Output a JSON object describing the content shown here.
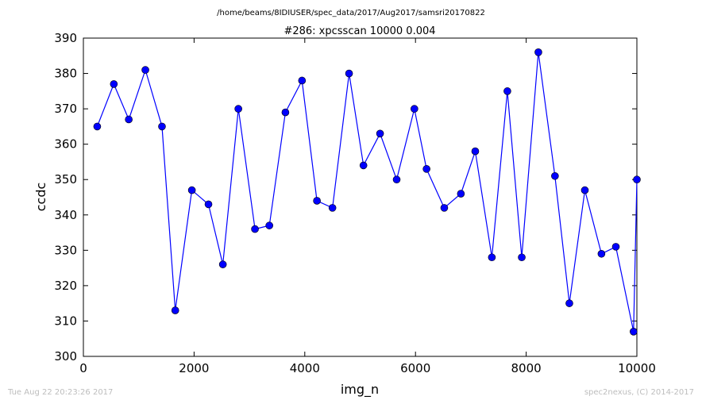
{
  "chart_data": {
    "type": "line",
    "suptitle": "/home/beams/8IDIUSER/spec_data/2017/Aug2017/samsri20170822",
    "title": "#286: xpcsscan 10000 0.004",
    "xlabel": "img_n",
    "ylabel": "ccdc",
    "xlim": [
      0,
      10000
    ],
    "ylim": [
      300,
      390
    ],
    "xticks": [
      0,
      2000,
      4000,
      6000,
      8000,
      10000
    ],
    "yticks": [
      300,
      310,
      320,
      330,
      340,
      350,
      360,
      370,
      380,
      390
    ],
    "grid": false,
    "legend": "none",
    "colors": {
      "line": "#0000ff",
      "marker": "#0000ff"
    },
    "series": [
      {
        "x": [
          250,
          550,
          820,
          1120,
          1420,
          1660,
          1960,
          2260,
          2520,
          2800,
          3100,
          3360,
          3650,
          3950,
          4220,
          4500,
          4800,
          5060,
          5360,
          5660,
          5980,
          6200,
          6520,
          6820,
          7080,
          7380,
          7660,
          7920,
          8220,
          8520,
          8780,
          9060,
          9360,
          9620,
          9940,
          10000
        ],
        "y": [
          365,
          377,
          367,
          381,
          365,
          313,
          347,
          343,
          326,
          370,
          336,
          337,
          369,
          378,
          344,
          342,
          380,
          354,
          363,
          350,
          370,
          353,
          342,
          346,
          358,
          328,
          375,
          328,
          386,
          351,
          315,
          347,
          329,
          331,
          307,
          350
        ]
      }
    ]
  },
  "footer": {
    "timestamp": "Tue Aug 22 20:23:26 2017",
    "credit": "spec2nexus, (C) 2014-2017"
  }
}
